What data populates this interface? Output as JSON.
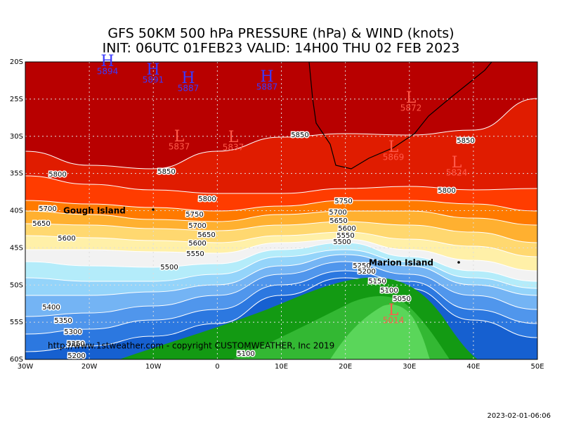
{
  "header": {
    "title_line_1": "GFS 50KM 500 hPa PRESSURE (hPa) & WIND (knots)",
    "title_line_2": "INIT: 06UTC 01FEB23  VALID: 14H00 THU 02 FEB 2023"
  },
  "axes": {
    "lat_labels": [
      "20S",
      "25S",
      "30S",
      "35S",
      "40S",
      "45S",
      "50S",
      "55S",
      "60S"
    ],
    "lon_labels": [
      "30W",
      "20W",
      "10W",
      "0",
      "10E",
      "20E",
      "30E",
      "40E",
      "50E"
    ]
  },
  "contour_labels": [
    "5850",
    "5850",
    "5850",
    "5800",
    "5800",
    "5800",
    "5750",
    "5750",
    "5700",
    "5700",
    "5700",
    "5650",
    "5650",
    "5650",
    "5600",
    "5600",
    "5600",
    "5550",
    "5550",
    "5500",
    "5500",
    "5400",
    "5350",
    "5300",
    "5250",
    "5200",
    "5250",
    "5200",
    "5150",
    "5100",
    "5050",
    "5100"
  ],
  "highs": [
    {
      "label": "H",
      "value": "5894"
    },
    {
      "label": "H",
      "value": "5891"
    },
    {
      "label": "H",
      "value": "5887"
    },
    {
      "label": "H",
      "value": "5887"
    }
  ],
  "lows": [
    {
      "label": "L",
      "value": "5837"
    },
    {
      "label": "L",
      "value": "5837"
    },
    {
      "label": "L",
      "value": "5872"
    },
    {
      "label": "L",
      "value": "5869"
    },
    {
      "label": "L",
      "value": "5824"
    },
    {
      "label": "L",
      "value": "5014"
    }
  ],
  "places": [
    "Gough Island",
    "Marion Island"
  ],
  "footer": {
    "copyright": "http://www.1stweather.com - copyright CUSTOMWEATHER, Inc 2019",
    "timestamp": "2023-02-01-06:06"
  }
}
